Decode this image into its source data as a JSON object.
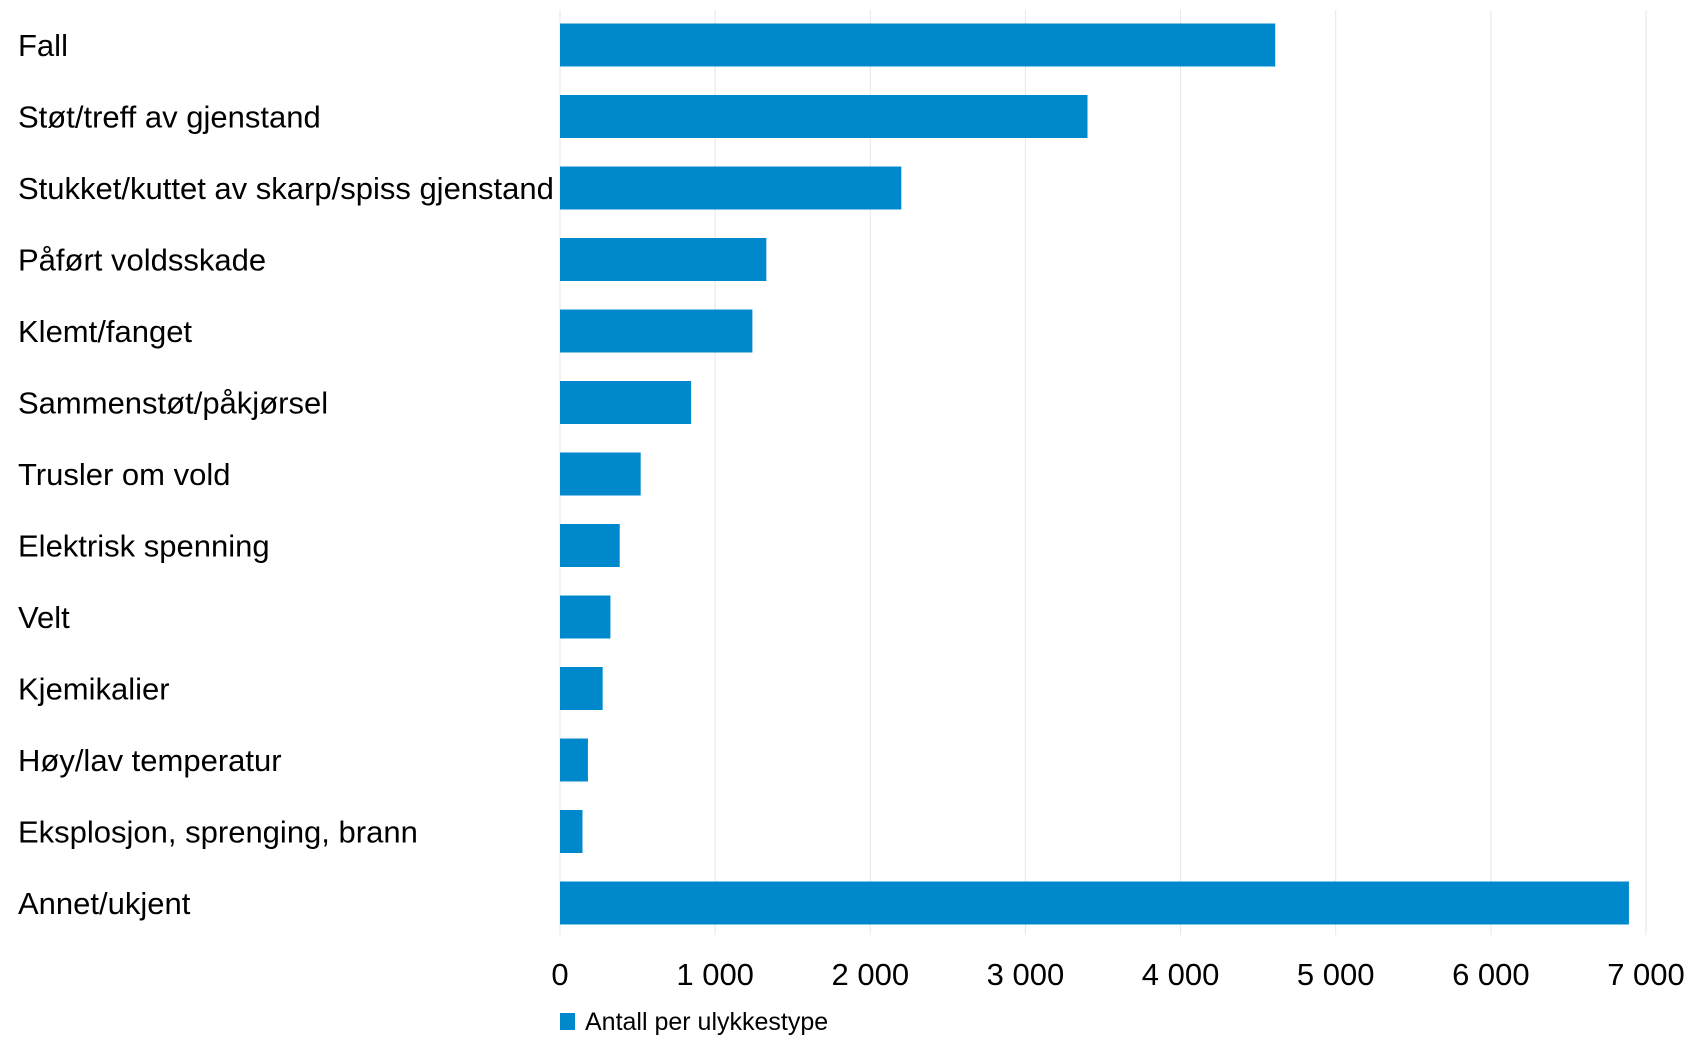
{
  "chart_data": {
    "type": "bar",
    "orientation": "horizontal",
    "categories": [
      "Fall",
      "Støt/treff av gjenstand",
      "Stukket/kuttet av skarp/spiss gjenstand",
      "Påført voldsskade",
      "Klemt/fanget",
      "Sammenstøt/påkjørsel",
      "Trusler om vold",
      "Elektrisk spenning",
      "Velt",
      "Kjemikalier",
      "Høy/lav temperatur",
      "Eksplosjon, sprenging, brann",
      "Annet/ukjent"
    ],
    "series": [
      {
        "name": "Antall per ulykkestype",
        "color": "#0088cc",
        "values": [
          4610,
          3400,
          2200,
          1330,
          1240,
          845,
          520,
          385,
          325,
          275,
          180,
          145,
          6890
        ]
      }
    ],
    "xlim": [
      0,
      7000
    ],
    "xticks": [
      0,
      1000,
      2000,
      3000,
      4000,
      5000,
      6000,
      7000
    ],
    "xtick_labels": [
      "0",
      "1 000",
      "2 000",
      "3 000",
      "4 000",
      "5 000",
      "6 000",
      "7 000"
    ],
    "grid": "vertical",
    "legend": {
      "position": "bottom-left",
      "label": "Antall per ulykkestype"
    }
  }
}
